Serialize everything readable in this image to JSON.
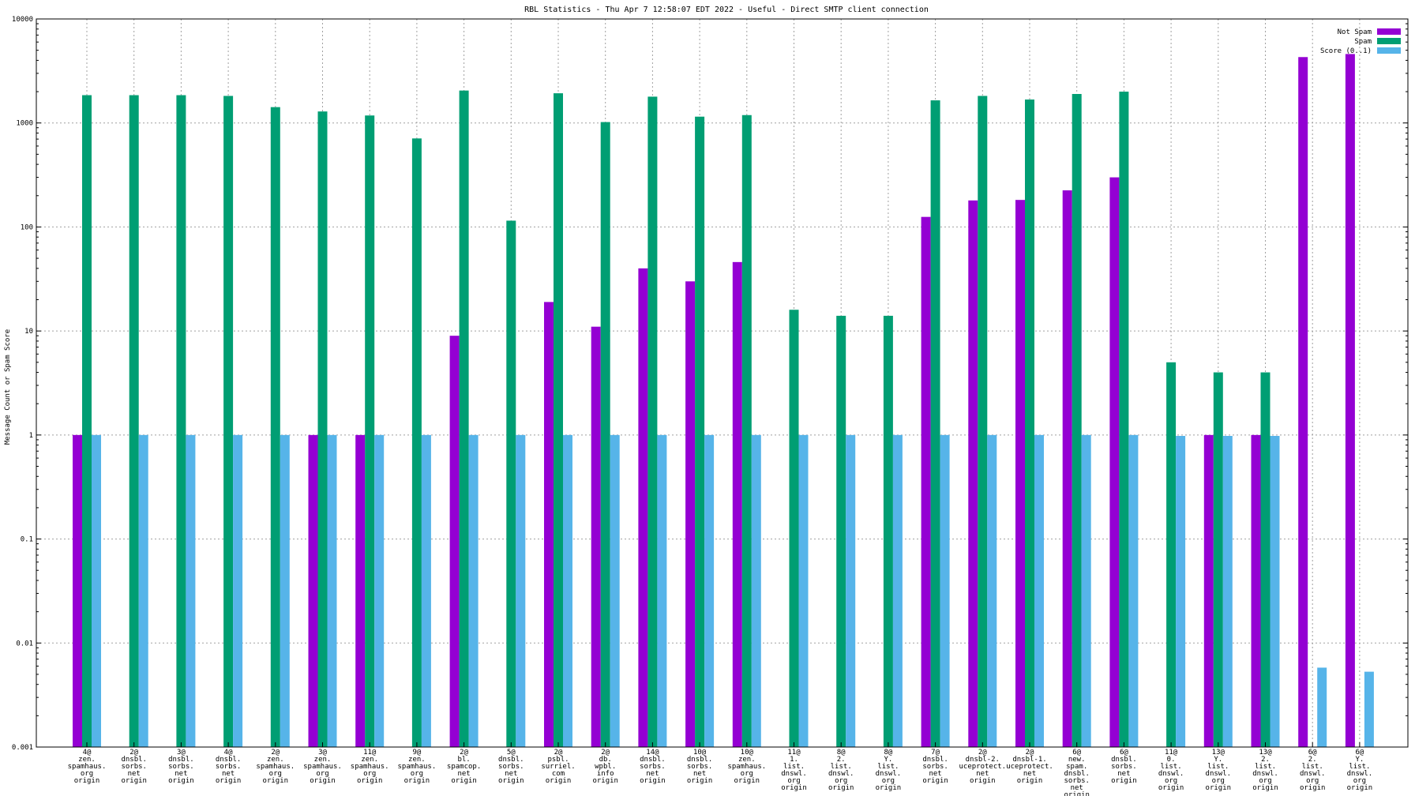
{
  "chart_data": {
    "type": "bar",
    "title": "RBL Statistics - Thu Apr  7 12:58:07 EDT 2022 - Useful - Direct SMTP client connection",
    "ylabel": "Message Count or Spam Score",
    "xlabel": "",
    "yscale": "log",
    "ylim": [
      0.001,
      10000
    ],
    "ytick_labels": [
      "0.001",
      "0.01",
      "0.1",
      "1",
      "10",
      "100",
      "1000",
      "10000"
    ],
    "grid": true,
    "legend_position": "top-right",
    "categories": [
      [
        "4@",
        "zen.",
        "spamhaus.",
        "org",
        "origin"
      ],
      [
        "2@",
        "dnsbl.",
        "sorbs.",
        "net",
        "origin"
      ],
      [
        "3@",
        "dnsbl.",
        "sorbs.",
        "net",
        "origin"
      ],
      [
        "4@",
        "dnsbl.",
        "sorbs.",
        "net",
        "origin"
      ],
      [
        "2@",
        "zen.",
        "spamhaus.",
        "org",
        "origin"
      ],
      [
        "3@",
        "zen.",
        "spamhaus.",
        "org",
        "origin"
      ],
      [
        "11@",
        "zen.",
        "spamhaus.",
        "org",
        "origin"
      ],
      [
        "9@",
        "zen.",
        "spamhaus.",
        "org",
        "origin"
      ],
      [
        "2@",
        "bl.",
        "spamcop.",
        "net",
        "origin"
      ],
      [
        "5@",
        "dnsbl.",
        "sorbs.",
        "net",
        "origin"
      ],
      [
        "2@",
        "psbl.",
        "surriel.",
        "com",
        "origin"
      ],
      [
        "2@",
        "db.",
        "wpbl.",
        "info",
        "origin"
      ],
      [
        "14@",
        "dnsbl.",
        "sorbs.",
        "net",
        "origin"
      ],
      [
        "10@",
        "dnsbl.",
        "sorbs.",
        "net",
        "origin"
      ],
      [
        "10@",
        "zen.",
        "spamhaus.",
        "org",
        "origin"
      ],
      [
        "11@",
        "1.",
        "list.",
        "dnswl.",
        "org",
        "origin"
      ],
      [
        "8@",
        "2.",
        "list.",
        "dnswl.",
        "org",
        "origin"
      ],
      [
        "8@",
        "Y.",
        "list.",
        "dnswl.",
        "org",
        "origin"
      ],
      [
        "7@",
        "dnsbl.",
        "sorbs.",
        "net",
        "origin"
      ],
      [
        "2@",
        "dnsbl-2.",
        "uceprotect.",
        "net",
        "origin"
      ],
      [
        "2@",
        "dnsbl-1.",
        "uceprotect.",
        "net",
        "origin"
      ],
      [
        "6@",
        "new.",
        "spam.",
        "dnsbl.",
        "sorbs.",
        "net",
        "origin"
      ],
      [
        "6@",
        "dnsbl.",
        "sorbs.",
        "net",
        "origin"
      ],
      [
        "11@",
        "0.",
        "list.",
        "dnswl.",
        "org",
        "origin"
      ],
      [
        "13@",
        "Y.",
        "list.",
        "dnswl.",
        "org",
        "origin"
      ],
      [
        "13@",
        "2.",
        "list.",
        "dnswl.",
        "org",
        "origin"
      ],
      [
        "6@",
        "2.",
        "list.",
        "dnswl.",
        "org",
        "origin"
      ],
      [
        "6@",
        "Y.",
        "list.",
        "dnswl.",
        "org",
        "origin"
      ]
    ],
    "series": [
      {
        "name": "Not Spam",
        "color": "#9400d3",
        "values": [
          1,
          null,
          null,
          null,
          null,
          1,
          1,
          null,
          9,
          null,
          19,
          11,
          40,
          30,
          46,
          null,
          null,
          null,
          125,
          180,
          182,
          225,
          300,
          null,
          1,
          1,
          4300,
          4600
        ]
      },
      {
        "name": "Spam",
        "color": "#009e73",
        "values": [
          1850,
          1850,
          1850,
          1820,
          1420,
          1290,
          1180,
          710,
          2050,
          115,
          1930,
          1020,
          1790,
          1150,
          1190,
          16,
          14,
          14,
          1650,
          1820,
          1680,
          1900,
          2000,
          5,
          4,
          4,
          null,
          null
        ]
      },
      {
        "name": "Score (0..1)",
        "color": "#56b4e9",
        "values": [
          1,
          1,
          1,
          1,
          1,
          1,
          1,
          1,
          1,
          1,
          1,
          1,
          1,
          1,
          1,
          1,
          1,
          1,
          1,
          1,
          1,
          1,
          1,
          0.98,
          0.98,
          0.98,
          0.0058,
          0.0053
        ]
      }
    ]
  }
}
